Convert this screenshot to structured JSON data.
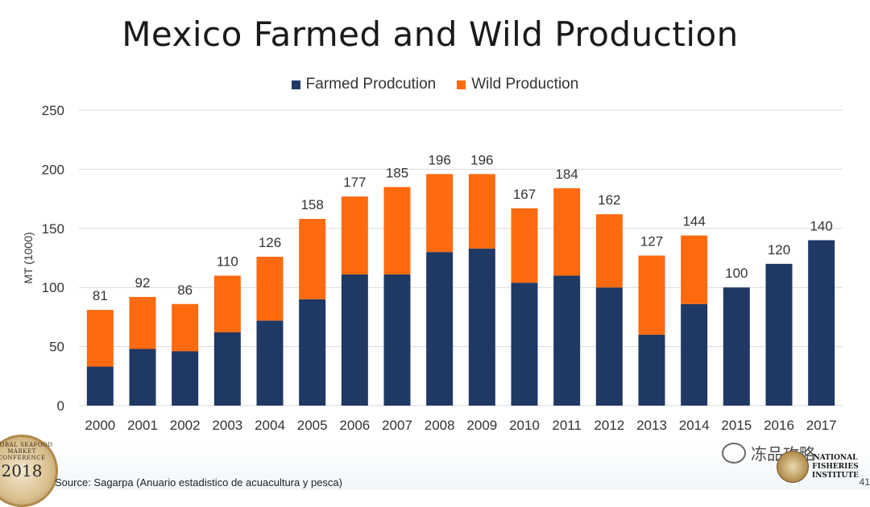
{
  "slide": {
    "source": "Source: Sagarpa (Anuario estadistico de acuacultura y pesca)",
    "slide_number": "41",
    "watermark_text": "冻品攻略",
    "left_logo_year": "2018",
    "left_logo_arc_text": "GLOBAL SEAFOOD MARKET CONFERENCE",
    "right_logo_text": [
      "NATIONAL",
      "FISHERIES",
      "INSTITUTE"
    ]
  },
  "colors": {
    "farmed": "#1f3864",
    "wild": "#ff6a0f",
    "grid": "#d9d9d9",
    "text": "#333333"
  },
  "chart_data": {
    "type": "bar",
    "stacked": true,
    "title": "Mexico Farmed and Wild Production",
    "xlabel": "",
    "ylabel": "MT (1000)",
    "ylim": [
      0,
      250
    ],
    "yticks": [
      0,
      50,
      100,
      150,
      200,
      250
    ],
    "grid": true,
    "legend_position": "top-center",
    "categories": [
      "2000",
      "2001",
      "2002",
      "2003",
      "2004",
      "2005",
      "2006",
      "2007",
      "2008",
      "2009",
      "2010",
      "2011",
      "2012",
      "2013",
      "2014",
      "2015",
      "2016",
      "2017"
    ],
    "series": [
      {
        "name": "Farmed Prodcution",
        "color": "#1f3864",
        "values": [
          33,
          48,
          46,
          62,
          72,
          90,
          111,
          111,
          130,
          133,
          104,
          110,
          100,
          60,
          86,
          100,
          120,
          140
        ]
      },
      {
        "name": "Wild Production",
        "color": "#ff6a0f",
        "values": [
          48,
          44,
          40,
          48,
          54,
          68,
          66,
          74,
          66,
          63,
          63,
          74,
          62,
          67,
          58,
          0,
          0,
          0
        ]
      }
    ],
    "totals": [
      81,
      92,
      86,
      110,
      126,
      158,
      177,
      185,
      196,
      196,
      167,
      184,
      162,
      127,
      144,
      100,
      120,
      140
    ]
  }
}
